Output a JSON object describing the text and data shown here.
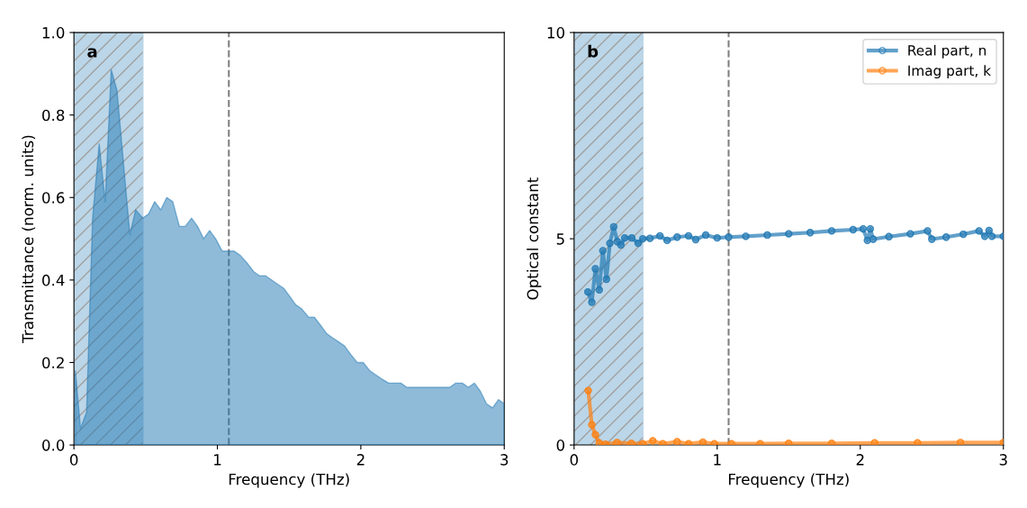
{
  "chart_data": [
    {
      "type": "area",
      "xlabel": "Frequency (THz)",
      "ylabel": "Transmittance (norm. units)",
      "annotations": [
        "a"
      ],
      "xlim": [
        0,
        3
      ],
      "xticks": [
        0,
        1,
        2,
        3
      ],
      "ylim": [
        0,
        1.0
      ],
      "yticks": [
        {
          "value": 0,
          "label": "0.0"
        },
        {
          "value": 0.2,
          "label": "0.2"
        },
        {
          "value": 0.4,
          "label": "0.4"
        },
        {
          "value": 0.6,
          "label": "0.6"
        },
        {
          "value": 0.8,
          "label": "0.8"
        },
        {
          "value": 1.0,
          "label": "1.0"
        }
      ],
      "grid": false,
      "legend": false,
      "bands": [
        {
          "axis": "x",
          "from": 0,
          "to": 0.48,
          "color": "#1f77b4"
        }
      ],
      "ref_lines": [
        {
          "axis": "x",
          "value": 1.08,
          "color": "#808080",
          "line_style": "dashed"
        }
      ],
      "series": [
        {
          "color": "#1f77b4",
          "x": [
            0.01,
            0.046,
            0.088,
            0.13,
            0.176,
            0.218,
            0.26,
            0.3,
            0.39,
            0.43,
            0.48,
            0.52,
            0.563,
            0.605,
            0.647,
            0.689,
            0.735,
            0.776,
            0.82,
            0.862,
            0.904,
            0.946,
            0.988,
            1.034,
            1.075,
            1.117,
            1.159,
            1.21,
            1.254,
            1.295,
            1.337,
            1.42,
            1.462,
            1.505,
            1.546,
            1.588,
            1.636,
            1.676,
            1.72,
            1.762,
            1.803,
            1.846,
            1.887,
            1.929,
            1.975,
            2.017,
            2.063,
            2.105,
            2.147,
            2.195,
            2.237,
            2.279,
            2.321,
            2.363,
            2.405,
            2.446,
            2.499,
            2.572,
            2.62,
            2.662,
            2.708,
            2.75,
            2.792,
            2.834,
            2.876,
            2.918,
            2.96,
            3.0
          ],
          "values": [
            0.18,
            0.04,
            0.08,
            0.55,
            0.73,
            0.59,
            0.91,
            0.86,
            0.51,
            0.57,
            0.55,
            0.56,
            0.59,
            0.57,
            0.6,
            0.59,
            0.53,
            0.53,
            0.55,
            0.53,
            0.5,
            0.52,
            0.5,
            0.47,
            0.47,
            0.47,
            0.46,
            0.44,
            0.42,
            0.41,
            0.41,
            0.39,
            0.38,
            0.36,
            0.34,
            0.33,
            0.31,
            0.31,
            0.29,
            0.27,
            0.26,
            0.25,
            0.24,
            0.22,
            0.2,
            0.2,
            0.18,
            0.17,
            0.16,
            0.15,
            0.15,
            0.15,
            0.14,
            0.14,
            0.14,
            0.14,
            0.14,
            0.14,
            0.14,
            0.15,
            0.15,
            0.14,
            0.15,
            0.13,
            0.1,
            0.09,
            0.11,
            0.1
          ]
        }
      ]
    },
    {
      "type": "line",
      "xlabel": "Frequency (THz)",
      "ylabel": "Optical constant",
      "annotations": [
        "b"
      ],
      "xlim": [
        0,
        3
      ],
      "xticks": [
        0,
        1,
        2,
        3
      ],
      "ylim": [
        0,
        10
      ],
      "yticks": [
        0,
        5,
        10
      ],
      "grid": false,
      "legend": "top right",
      "marker": "circle",
      "line_style": "solid",
      "bands": [
        {
          "axis": "x",
          "from": 0,
          "to": 0.48,
          "color": "#1f77b4"
        }
      ],
      "ref_lines": [
        {
          "axis": "x",
          "value": 1.08,
          "color": "#808080",
          "line_style": "dashed"
        }
      ],
      "series": [
        {
          "name": "Real part, n",
          "color": "#1f77b4",
          "x": [
            0.096,
            0.124,
            0.149,
            0.176,
            0.201,
            0.226,
            0.25,
            0.277,
            0.302,
            0.327,
            0.354,
            0.403,
            0.448,
            0.48,
            0.53,
            0.6,
            0.65,
            0.72,
            0.8,
            0.85,
            0.92,
            1.0,
            1.08,
            1.2,
            1.35,
            1.5,
            1.65,
            1.8,
            1.95,
            2.02,
            2.05,
            2.07,
            2.09,
            2.2,
            2.35,
            2.47,
            2.5,
            2.6,
            2.72,
            2.83,
            2.87,
            2.9,
            2.92,
            3.0
          ],
          "values": [
            3.71,
            3.46,
            4.27,
            3.76,
            4.71,
            4.02,
            4.89,
            5.29,
            4.93,
            4.85,
            5.02,
            5.02,
            4.89,
            5.0,
            5.01,
            5.07,
            4.96,
            5.04,
            5.07,
            4.98,
            5.09,
            5.02,
            5.04,
            5.06,
            5.09,
            5.12,
            5.15,
            5.19,
            5.22,
            5.24,
            4.96,
            5.24,
            4.99,
            5.05,
            5.12,
            5.19,
            4.99,
            5.04,
            5.11,
            5.19,
            5.06,
            5.2,
            5.06,
            5.06
          ]
        },
        {
          "name": "Imag part, k",
          "color": "#ff7f0e",
          "x": [
            0.099,
            0.124,
            0.149,
            0.176,
            0.22,
            0.3,
            0.4,
            0.48,
            0.55,
            0.62,
            0.72,
            0.8,
            0.9,
            0.98,
            1.1,
            1.3,
            1.5,
            1.8,
            2.1,
            2.4,
            2.7,
            3.0
          ],
          "values": [
            1.32,
            0.49,
            0.25,
            0.05,
            0.02,
            0.06,
            0.04,
            0.03,
            0.1,
            0.03,
            0.08,
            0.03,
            0.07,
            0.03,
            0.03,
            0.03,
            0.04,
            0.04,
            0.05,
            0.05,
            0.06,
            0.06
          ]
        }
      ]
    }
  ]
}
